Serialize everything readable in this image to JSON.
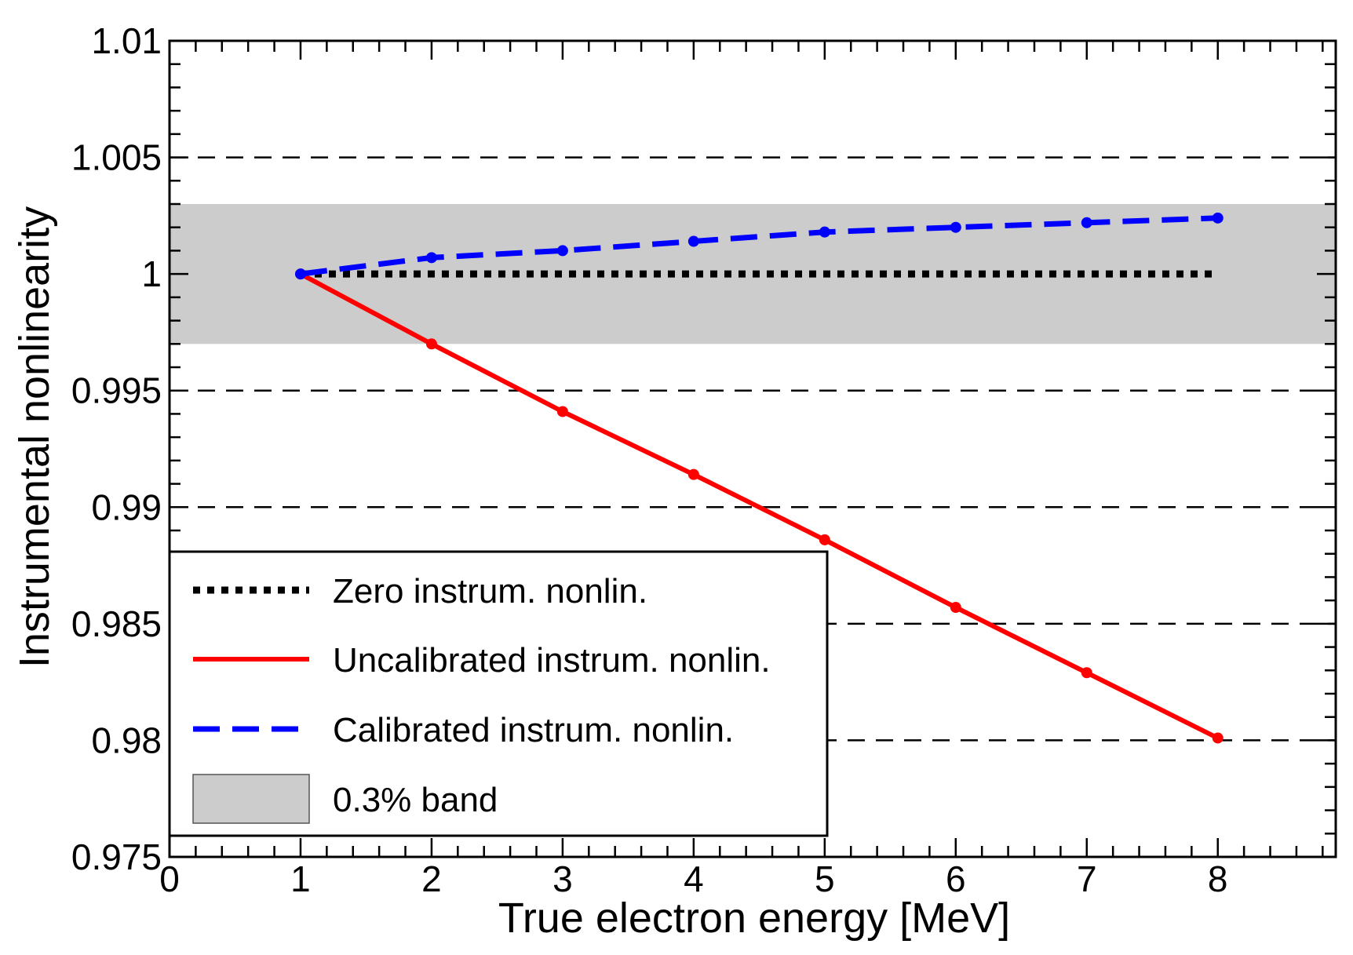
{
  "chart_data": {
    "type": "line",
    "title": "",
    "xlabel": "True electron energy [MeV]",
    "ylabel": "Instrumental nonlinearity",
    "xlim": [
      0,
      8.9
    ],
    "ylim": [
      0.975,
      1.01
    ],
    "x_ticks": [
      0,
      1,
      2,
      3,
      4,
      5,
      6,
      7,
      8
    ],
    "x_tick_labels": [
      "0",
      "1",
      "2",
      "3",
      "4",
      "5",
      "6",
      "7",
      "8"
    ],
    "y_ticks": [
      0.975,
      0.98,
      0.985,
      0.99,
      0.995,
      1,
      1.005,
      1.01
    ],
    "y_tick_labels": [
      "0.975",
      "0.98",
      "0.985",
      "0.99",
      "0.995",
      "1",
      "1.005",
      "1.01"
    ],
    "gridlines_y": [
      0.98,
      0.985,
      0.99,
      0.995,
      1.005
    ],
    "band": {
      "name": "0.3% band",
      "y_low": 0.997,
      "y_high": 1.003,
      "color": "#cccccc"
    },
    "series": [
      {
        "name": "Zero instrum. nonlin.",
        "style": "dotted",
        "color": "#000000",
        "x": [
          1,
          8
        ],
        "values": [
          1.0,
          1.0
        ],
        "markers": false
      },
      {
        "name": "Uncalibrated instrum. nonlin.",
        "style": "solid",
        "color": "#ff0000",
        "x": [
          1,
          2,
          3,
          4,
          5,
          6,
          7,
          8
        ],
        "values": [
          1.0,
          0.997,
          0.9941,
          0.9914,
          0.9886,
          0.9857,
          0.9829,
          0.9801
        ],
        "markers": true
      },
      {
        "name": "Calibrated instrum. nonlin.",
        "style": "dashed",
        "color": "#0000ff",
        "x": [
          1,
          2,
          3,
          4,
          5,
          6,
          7,
          8
        ],
        "values": [
          1.0,
          1.0007,
          1.001,
          1.0014,
          1.0018,
          1.002,
          1.0022,
          1.0024
        ],
        "markers": true
      }
    ],
    "legend": {
      "position": "bottom-left",
      "entries": [
        "Zero instrum. nonlin.",
        "Uncalibrated instrum. nonlin.",
        "Calibrated instrum. nonlin.",
        "0.3% band"
      ]
    }
  }
}
